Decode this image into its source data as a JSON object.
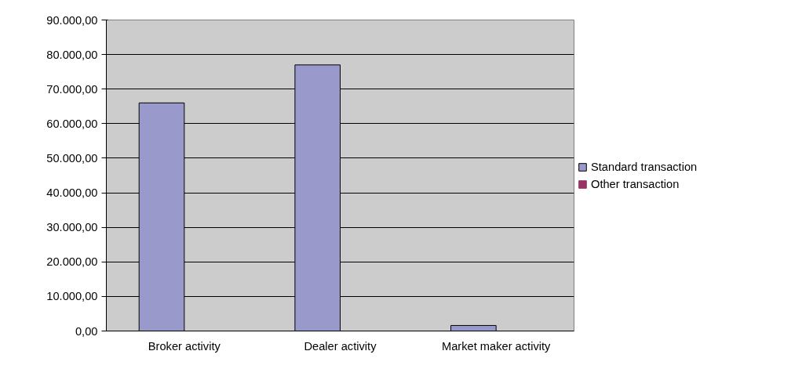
{
  "chart_data": {
    "type": "bar",
    "categories": [
      "Broker activity",
      "Dealer activity",
      "Market maker activity"
    ],
    "series": [
      {
        "name": "Standard transaction",
        "color": "#9999cc",
        "values": [
          66000,
          77000,
          1600
        ]
      },
      {
        "name": "Other transaction",
        "color": "#993366",
        "values": [
          0,
          0,
          0
        ]
      }
    ],
    "ylim": [
      0,
      90000
    ],
    "yticks": [
      {
        "value": 0,
        "label": "0,00"
      },
      {
        "value": 10000,
        "label": "10.000,00"
      },
      {
        "value": 20000,
        "label": "20.000,00"
      },
      {
        "value": 30000,
        "label": "30.000,00"
      },
      {
        "value": 40000,
        "label": "40.000,00"
      },
      {
        "value": 50000,
        "label": "50.000,00"
      },
      {
        "value": 60000,
        "label": "60.000,00"
      },
      {
        "value": 70000,
        "label": "70.000,00"
      },
      {
        "value": 80000,
        "label": "80.000,00"
      },
      {
        "value": 90000,
        "label": "90.000,00"
      }
    ],
    "grid": "y",
    "legend": "right"
  }
}
